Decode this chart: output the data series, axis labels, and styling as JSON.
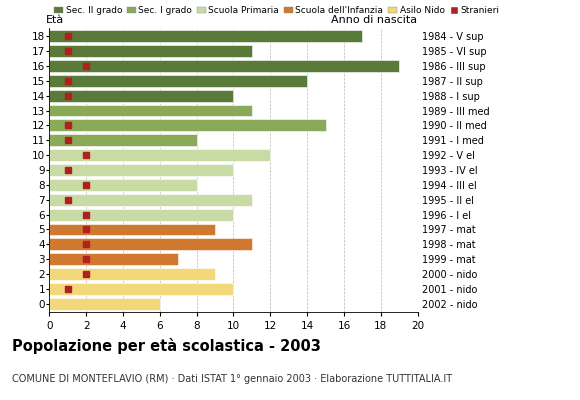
{
  "ages": [
    18,
    17,
    16,
    15,
    14,
    13,
    12,
    11,
    10,
    9,
    8,
    7,
    6,
    5,
    4,
    3,
    2,
    1,
    0
  ],
  "years": [
    "1984 - V sup",
    "1985 - VI sup",
    "1986 - III sup",
    "1987 - II sup",
    "1988 - I sup",
    "1989 - III med",
    "1990 - II med",
    "1991 - I med",
    "1992 - V el",
    "1993 - IV el",
    "1994 - III el",
    "1995 - II el",
    "1996 - I el",
    "1997 - mat",
    "1998 - mat",
    "1999 - mat",
    "2000 - nido",
    "2001 - nido",
    "2002 - nido"
  ],
  "values": [
    17,
    11,
    19,
    14,
    10,
    11,
    15,
    8,
    12,
    10,
    8,
    11,
    10,
    9,
    11,
    7,
    9,
    10,
    6
  ],
  "stranieri": [
    1,
    1,
    2,
    1,
    1,
    0,
    1,
    1,
    2,
    1,
    2,
    1,
    2,
    2,
    2,
    2,
    2,
    1,
    0
  ],
  "bar_colors_by_age": {
    "18": "#5a7a3a",
    "17": "#5a7a3a",
    "16": "#5a7a3a",
    "15": "#5a7a3a",
    "14": "#5a7a3a",
    "13": "#8aaa5a",
    "12": "#8aaa5a",
    "11": "#8aaa5a",
    "10": "#c8dba4",
    "9": "#c8dba4",
    "8": "#c8dba4",
    "7": "#c8dba4",
    "6": "#c8dba4",
    "5": "#d07830",
    "4": "#d07830",
    "3": "#d07830",
    "2": "#f2d87a",
    "1": "#f2d87a",
    "0": "#f2d87a"
  },
  "stranieri_color": "#b02020",
  "title": "Popolazione per età scolastica - 2003",
  "subtitle": "COMUNE DI MONTEFLAVIO (RM) · Dati ISTAT 1° gennaio 2003 · Elaborazione TUTTITALIA.IT",
  "label_eta": "Età",
  "label_anno": "Anno di nascita",
  "xlim": [
    0,
    20
  ],
  "xticks": [
    0,
    2,
    4,
    6,
    8,
    10,
    12,
    14,
    16,
    18,
    20
  ],
  "legend_items": [
    {
      "label": "Sec. II grado",
      "color": "#5a7a3a",
      "type": "patch"
    },
    {
      "label": "Sec. I grado",
      "color": "#8aaa5a",
      "type": "patch"
    },
    {
      "label": "Scuola Primaria",
      "color": "#c8dba4",
      "type": "patch"
    },
    {
      "label": "Scuola dell'Infanzia",
      "color": "#d07830",
      "type": "patch"
    },
    {
      "label": "Asilo Nido",
      "color": "#f2d87a",
      "type": "patch"
    },
    {
      "label": "Stranieri",
      "color": "#b02020",
      "type": "marker"
    }
  ],
  "bg_color": "#ffffff",
  "grid_color": "#999999"
}
